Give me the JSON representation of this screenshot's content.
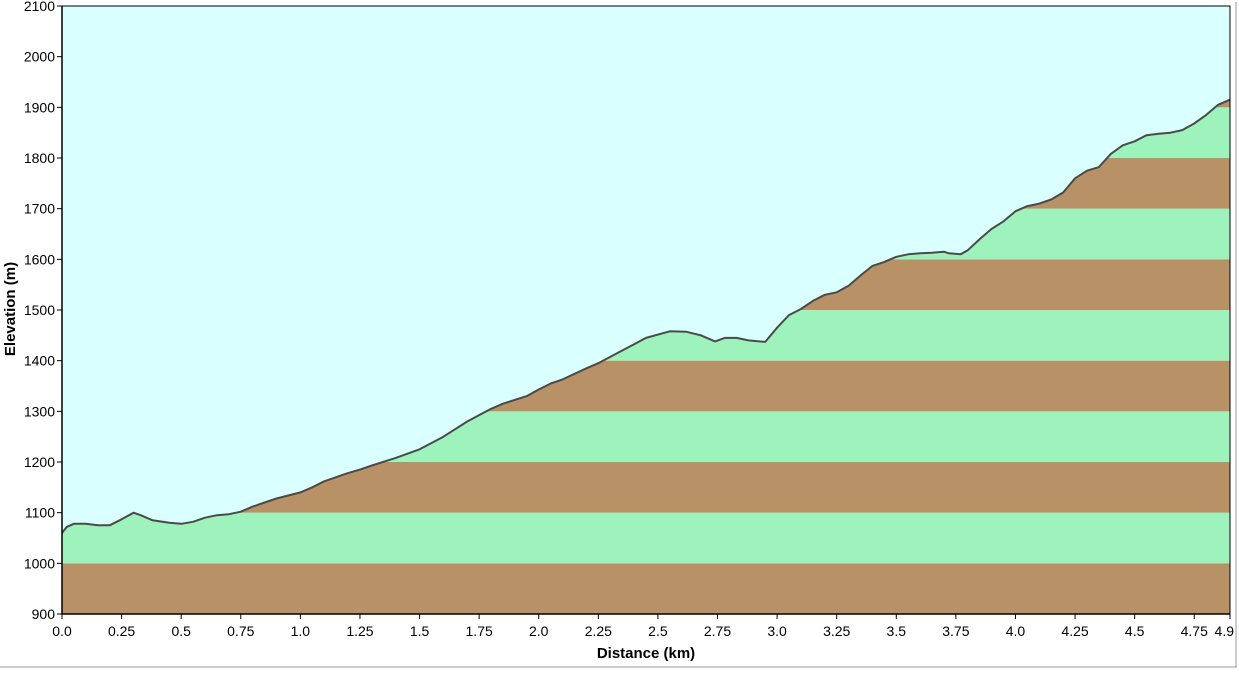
{
  "chart_data": {
    "type": "area",
    "xlabel": "Distance  (km)",
    "ylabel": "Elevation (m)",
    "xlim": [
      0.0,
      4.9
    ],
    "ylim": [
      900,
      2100
    ],
    "x_ticks": [
      {
        "value": 0.0,
        "label": "0.0"
      },
      {
        "value": 0.25,
        "label": "0.25"
      },
      {
        "value": 0.5,
        "label": "0.5"
      },
      {
        "value": 0.75,
        "label": "0.75"
      },
      {
        "value": 1.0,
        "label": "1.0"
      },
      {
        "value": 1.25,
        "label": "1.25"
      },
      {
        "value": 1.5,
        "label": "1.5"
      },
      {
        "value": 1.75,
        "label": "1.75"
      },
      {
        "value": 2.0,
        "label": "2.0"
      },
      {
        "value": 2.25,
        "label": "2.25"
      },
      {
        "value": 2.5,
        "label": "2.5"
      },
      {
        "value": 2.75,
        "label": "2.75"
      },
      {
        "value": 3.0,
        "label": "3.0"
      },
      {
        "value": 3.25,
        "label": "3.25"
      },
      {
        "value": 3.5,
        "label": "3.5"
      },
      {
        "value": 3.75,
        "label": "3.75"
      },
      {
        "value": 4.0,
        "label": "4.0"
      },
      {
        "value": 4.25,
        "label": "4.25"
      },
      {
        "value": 4.5,
        "label": "4.5"
      },
      {
        "value": 4.75,
        "label": "4.75"
      },
      {
        "value": 4.9,
        "label": "4.9"
      }
    ],
    "y_ticks": [
      {
        "value": 900,
        "label": "900"
      },
      {
        "value": 1000,
        "label": "1000"
      },
      {
        "value": 1100,
        "label": "1100"
      },
      {
        "value": 1200,
        "label": "1200"
      },
      {
        "value": 1300,
        "label": "1300"
      },
      {
        "value": 1400,
        "label": "1400"
      },
      {
        "value": 1500,
        "label": "1500"
      },
      {
        "value": 1600,
        "label": "1600"
      },
      {
        "value": 1700,
        "label": "1700"
      },
      {
        "value": 1800,
        "label": "1800"
      },
      {
        "value": 1900,
        "label": "1900"
      },
      {
        "value": 2000,
        "label": "2000"
      },
      {
        "value": 2100,
        "label": "2100"
      }
    ],
    "band_step": 100,
    "colors": {
      "sky": "#daffff",
      "band_brown": "#b89266",
      "band_green": "#9ef2bc",
      "profile_line": "#4a4a4a",
      "axis": "#000000"
    },
    "series": [
      {
        "x": [
          0.0,
          0.02,
          0.05,
          0.1,
          0.15,
          0.2,
          0.25,
          0.3,
          0.33,
          0.38,
          0.45,
          0.5,
          0.55,
          0.6,
          0.65,
          0.7,
          0.75,
          0.8,
          0.85,
          0.9,
          1.0,
          1.05,
          1.1,
          1.2,
          1.25,
          1.3,
          1.4,
          1.5,
          1.6,
          1.7,
          1.8,
          1.85,
          1.95,
          2.0,
          2.05,
          2.1,
          2.2,
          2.25,
          2.35,
          2.45,
          2.55,
          2.62,
          2.68,
          2.74,
          2.78,
          2.83,
          2.88,
          2.95,
          3.0,
          3.05,
          3.1,
          3.15,
          3.2,
          3.25,
          3.3,
          3.35,
          3.4,
          3.45,
          3.5,
          3.55,
          3.6,
          3.65,
          3.7,
          3.72,
          3.77,
          3.8,
          3.85,
          3.9,
          3.95,
          4.0,
          4.05,
          4.1,
          4.15,
          4.2,
          4.25,
          4.3,
          4.35,
          4.4,
          4.45,
          4.5,
          4.55,
          4.6,
          4.65,
          4.7,
          4.75,
          4.8,
          4.85,
          4.9
        ],
        "y": [
          1060,
          1072,
          1078,
          1078,
          1075,
          1075,
          1087,
          1100,
          1095,
          1085,
          1080,
          1078,
          1082,
          1090,
          1095,
          1097,
          1102,
          1112,
          1120,
          1128,
          1140,
          1150,
          1162,
          1178,
          1185,
          1193,
          1208,
          1225,
          1250,
          1280,
          1305,
          1315,
          1330,
          1343,
          1355,
          1363,
          1385,
          1395,
          1420,
          1445,
          1458,
          1457,
          1450,
          1438,
          1445,
          1445,
          1440,
          1437,
          1465,
          1490,
          1502,
          1518,
          1530,
          1535,
          1548,
          1568,
          1587,
          1595,
          1605,
          1610,
          1612,
          1613,
          1615,
          1612,
          1610,
          1618,
          1640,
          1660,
          1675,
          1695,
          1705,
          1710,
          1718,
          1732,
          1760,
          1775,
          1782,
          1808,
          1825,
          1833,
          1845,
          1848,
          1850,
          1855,
          1868,
          1885,
          1905,
          1915
        ]
      }
    ]
  }
}
